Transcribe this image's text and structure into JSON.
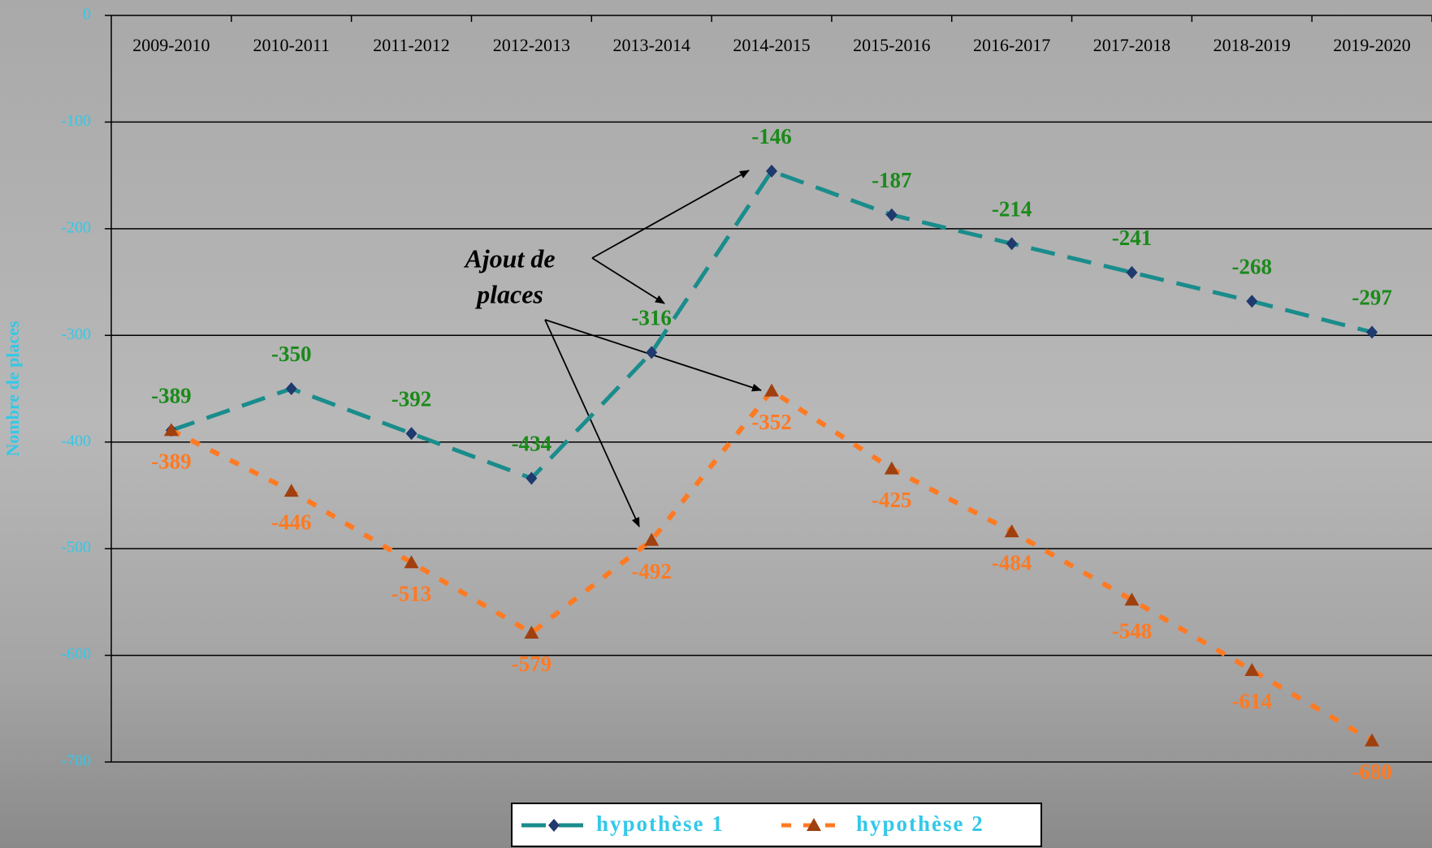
{
  "chart_data": {
    "type": "line",
    "y_axis_label": "Nombre de places",
    "annotation": [
      "Ajout de",
      "places"
    ],
    "categories": [
      "2009-2010",
      "2010-2011",
      "2011-2012",
      "2012-2013",
      "2013-2014",
      "2014-2015",
      "2015-2016",
      "2016-2017",
      "2017-2018",
      "2018-2019",
      "2019-2020"
    ],
    "series": [
      {
        "name": "hypothèse 1",
        "color": "#1a8c8c",
        "marker_color": "#1f3a6e",
        "label_color": "#1a8a1a",
        "marker": "diamond",
        "values": [
          -389,
          -350,
          -392,
          -434,
          -316,
          -146,
          -187,
          -214,
          -241,
          -268,
          -297
        ]
      },
      {
        "name": "hypothèse 2",
        "color": "#ff7a22",
        "marker_color": "#a0400e",
        "label_color": "#ff7a22",
        "marker": "triangle",
        "values": [
          -389,
          -446,
          -513,
          -579,
          -492,
          -352,
          -425,
          -484,
          -548,
          -614,
          -680
        ]
      }
    ],
    "ylim": [
      -700,
      0
    ],
    "yticks": [
      0,
      -100,
      -200,
      -300,
      -400,
      -500,
      -600,
      -700
    ],
    "grid": true,
    "legend": "bottom"
  }
}
